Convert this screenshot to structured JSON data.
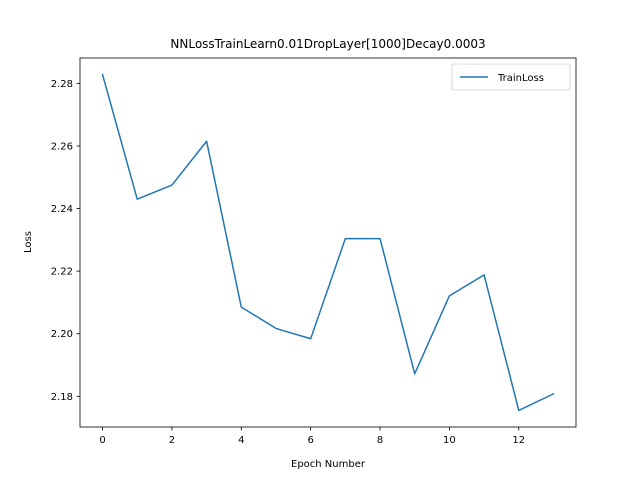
{
  "chart_data": {
    "type": "line",
    "title": "NNLossTrainLearn0.01DropLayer[1000]Decay0.0003",
    "xlabel": "Epoch Number",
    "ylabel": "Loss",
    "xlim": [
      -0.65,
      13.65
    ],
    "ylim": [
      2.1702,
      2.2881
    ],
    "xticks": [
      0,
      2,
      4,
      6,
      8,
      10,
      12
    ],
    "xtick_labels": [
      "0",
      "2",
      "4",
      "6",
      "8",
      "10",
      "12"
    ],
    "yticks": [
      2.18,
      2.2,
      2.22,
      2.24,
      2.26,
      2.28
    ],
    "ytick_labels": [
      "2.18",
      "2.20",
      "2.22",
      "2.24",
      "2.26",
      "2.28"
    ],
    "grid": false,
    "legend_position": "top-right",
    "series": [
      {
        "name": "TrainLoss",
        "color": "#1f77b4",
        "x": [
          0,
          1,
          2,
          3,
          4,
          5,
          6,
          7,
          8,
          9,
          10,
          11,
          12,
          13
        ],
        "y": [
          2.2828,
          2.243,
          2.2475,
          2.2615,
          2.2085,
          2.2017,
          2.1984,
          2.2304,
          2.2304,
          2.1872,
          2.2121,
          2.2188,
          2.1755,
          2.1808
        ]
      }
    ]
  }
}
